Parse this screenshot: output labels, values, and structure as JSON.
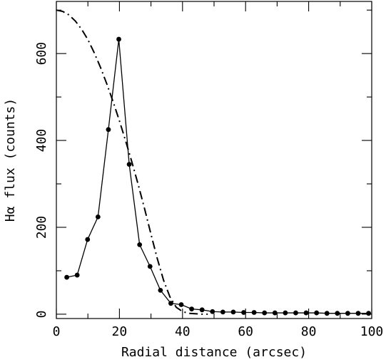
{
  "chart_data": {
    "type": "line",
    "title": "",
    "xlabel": "Radial distance (arcsec)",
    "ylabel": "Hα flux (counts)",
    "xlim": [
      0,
      100
    ],
    "ylim": [
      -10,
      720
    ],
    "x_ticks": [
      0,
      20,
      40,
      60,
      80,
      100
    ],
    "y_ticks": [
      0,
      200,
      400,
      600
    ],
    "x_minor_step": 10,
    "y_minor_step": 100,
    "grid": false,
    "legend": "none",
    "series": [
      {
        "style": "solid-with-points",
        "color": "#000000",
        "x": [
          3.3,
          6.6,
          9.9,
          13.2,
          16.5,
          19.8,
          23.1,
          26.4,
          29.7,
          33.0,
          36.3,
          39.6,
          42.9,
          46.2,
          49.5,
          52.8,
          56.1,
          59.4,
          62.7,
          66.0,
          69.3,
          72.6,
          75.9,
          79.2,
          82.5,
          85.8,
          89.1,
          92.4,
          95.7,
          99.0
        ],
        "y": [
          85,
          90,
          172,
          224,
          425,
          633,
          345,
          160,
          110,
          55,
          25,
          22,
          12,
          10,
          6,
          5,
          5,
          4,
          4,
          3,
          3,
          3,
          3,
          3,
          3,
          2,
          2,
          2,
          2,
          2
        ]
      },
      {
        "style": "dash-dot",
        "color": "#000000",
        "x": [
          0,
          2,
          4,
          6,
          8,
          10,
          12,
          14,
          16,
          18,
          20,
          22,
          24,
          26,
          28,
          30,
          32,
          34,
          36,
          38,
          40,
          42,
          44,
          46,
          48
        ],
        "y": [
          700,
          697,
          689,
          675,
          656,
          632,
          602,
          568,
          530,
          489,
          445,
          398,
          349,
          297,
          242,
          184,
          128,
          78,
          40,
          16,
          6,
          2,
          1,
          0,
          0
        ]
      }
    ]
  }
}
